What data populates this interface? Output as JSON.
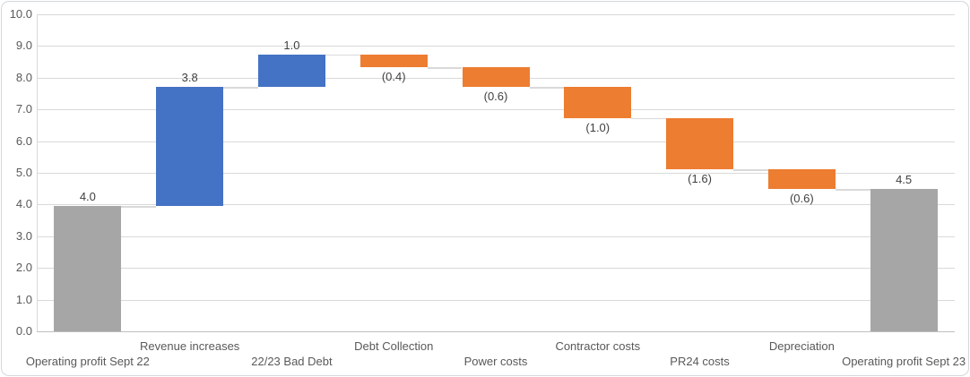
{
  "chart_data": {
    "type": "bar",
    "subtype": "waterfall",
    "title": "",
    "xlabel": "",
    "ylabel": "",
    "legend": "none",
    "grid": true,
    "connectors": true,
    "ylim": [
      0,
      10
    ],
    "ytick_step": 1.0,
    "yticks": [
      "0.0",
      "1.0",
      "2.0",
      "3.0",
      "4.0",
      "5.0",
      "6.0",
      "7.0",
      "8.0",
      "9.0",
      "10.0"
    ],
    "categories": [
      "Operating profit Sept 22",
      "Revenue increases",
      "22/23 Bad Debt",
      "Debt Collection",
      "Power costs",
      "Contractor costs",
      "PR24 costs",
      "Depreciation",
      "Operating profit Sept 23"
    ],
    "bars": [
      {
        "category": "Operating profit Sept 22",
        "data_label": "4.0",
        "value": 4.0,
        "role": "total",
        "start": 0.0,
        "end": 3.95
      },
      {
        "category": "Revenue increases",
        "data_label": "3.8",
        "value": 3.8,
        "role": "increase",
        "start": 3.95,
        "end": 7.71
      },
      {
        "category": "22/23 Bad Debt",
        "data_label": "1.0",
        "value": 1.0,
        "role": "increase",
        "start": 7.71,
        "end": 8.73
      },
      {
        "category": "Debt Collection",
        "data_label": "(0.4)",
        "value": -0.4,
        "role": "decrease",
        "start": 8.73,
        "end": 8.33
      },
      {
        "category": "Power costs",
        "data_label": "(0.6)",
        "value": -0.6,
        "role": "decrease",
        "start": 8.33,
        "end": 7.71
      },
      {
        "category": "Contractor costs",
        "data_label": "(1.0)",
        "value": -1.0,
        "role": "decrease",
        "start": 7.71,
        "end": 6.73
      },
      {
        "category": "PR24 costs",
        "data_label": "(1.6)",
        "value": -1.6,
        "role": "decrease",
        "start": 6.73,
        "end": 5.11
      },
      {
        "category": "Depreciation",
        "data_label": "(0.6)",
        "value": -0.6,
        "role": "decrease",
        "start": 5.11,
        "end": 4.49
      },
      {
        "category": "Operating profit Sept 23",
        "data_label": "4.5",
        "value": 4.5,
        "role": "total",
        "start": 0.0,
        "end": 4.49
      }
    ]
  },
  "colors": {
    "increase": "#4472c4",
    "decrease": "#ed7d31",
    "total": "#a6a6a6",
    "gridline": "#d9d9d9",
    "connector": "#d9d9d9",
    "axis_line": "#bfbfbf",
    "data_label": "#404040",
    "axis_label": "#595959",
    "chart_border": "#d3d7dc",
    "background": "#ffffff"
  }
}
